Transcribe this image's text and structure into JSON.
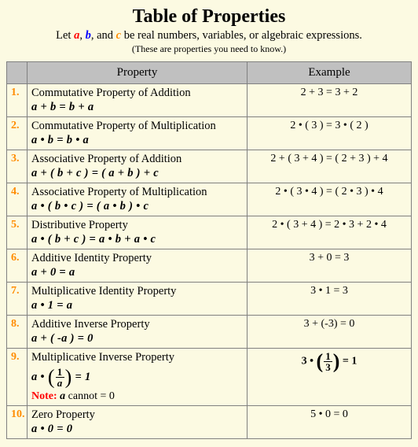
{
  "title": "Table of Properties",
  "subtitle": {
    "pre": "Let ",
    "a": "a",
    "sep1": ", ",
    "b": "b",
    "sep2": ", and ",
    "c": "c",
    "post": " be real numbers, variables, or algebraic expressions."
  },
  "subnote": "(These are properties you need to know.)",
  "headers": {
    "prop": "Property",
    "ex": "Example"
  },
  "accent_a": "#ff0000",
  "accent_b": "#0000ff",
  "accent_c": "#ff8c00",
  "rows": [
    {
      "n": "1.",
      "name": "Commutative Property of Addition",
      "formula": "a + b = b + a",
      "example": "2 + 3 = 3 + 2"
    },
    {
      "n": "2.",
      "name": "Commutative Property of Multiplication",
      "formula": "a • b = b • a",
      "example": "2 • ( 3 ) = 3 • ( 2 )"
    },
    {
      "n": "3.",
      "name": "Associative Property of Addition",
      "formula": "a + ( b + c ) = ( a + b ) + c",
      "example": "2 + ( 3 + 4 ) = ( 2 + 3 ) + 4"
    },
    {
      "n": "4.",
      "name": "Associative Property of Multiplication",
      "formula": "a • ( b • c ) = ( a • b ) • c",
      "example": "2 • ( 3 • 4 ) = ( 2 • 3 ) • 4"
    },
    {
      "n": "5.",
      "name": "Distributive Property",
      "formula": "a • ( b + c ) = a • b + a • c",
      "example": "2 • ( 3 + 4 ) = 2 •  3 + 2 • 4"
    },
    {
      "n": "6.",
      "name": "Additive Identity Property",
      "formula": "a + 0 = a",
      "example": "3 + 0 = 3"
    },
    {
      "n": "7.",
      "name": "Multiplicative Identity Property",
      "formula": "a •  1 = a",
      "example": "3 • 1  = 3"
    },
    {
      "n": "8.",
      "name": "Additive Inverse Property",
      "formula": "a + ( -a ) = 0",
      "example": "3 + (-3) = 0"
    },
    {
      "n": "9.",
      "name": "Multiplicative Inverse Property",
      "note_label": "Note:",
      "note_text": " cannot = 0",
      "eq": " = 1",
      "ex_lead": "3 • ",
      "ex_num": "1",
      "ex_den": "3",
      "f_num": "1",
      "f_den": "a"
    },
    {
      "n": "10.",
      "name": "Zero Property",
      "formula": "a • 0 = 0",
      "example": "5 • 0 = 0"
    }
  ]
}
